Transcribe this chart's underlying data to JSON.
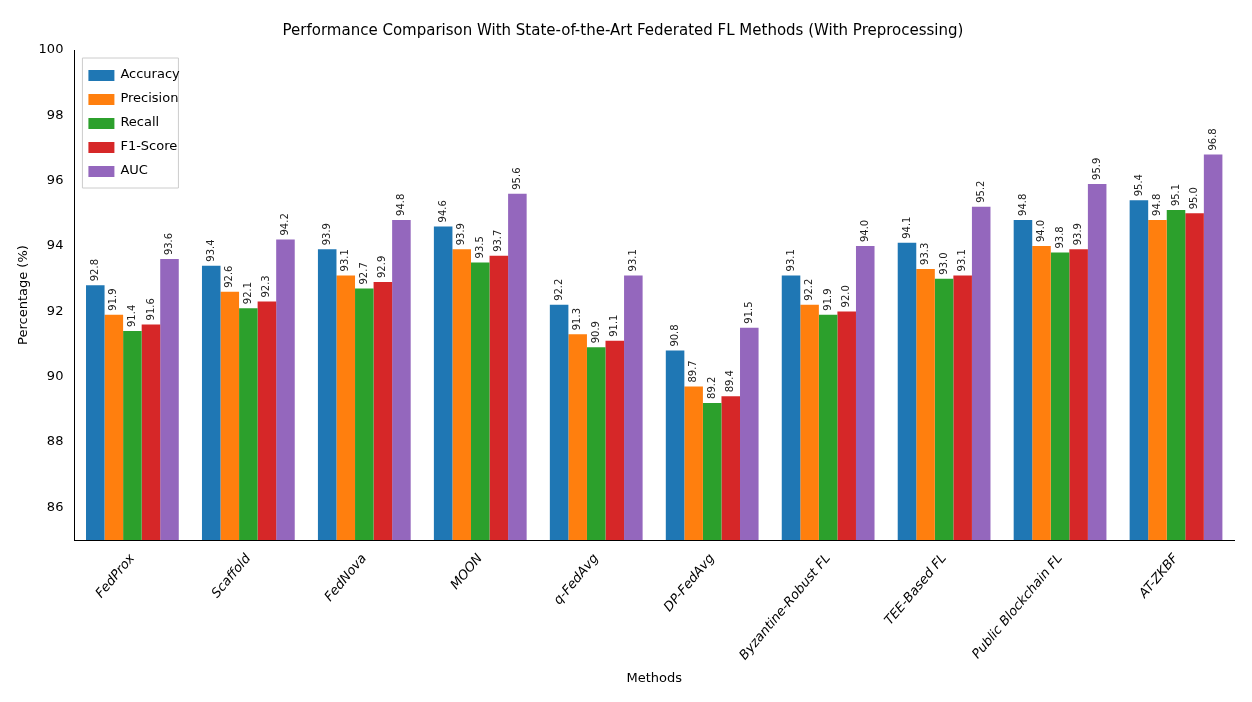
{
  "chart_data": {
    "type": "bar",
    "title": "Performance Comparison With State-of-the-Art Federated FL Methods (With Preprocessing)",
    "xlabel": "Methods",
    "ylabel": "Percentage (%)",
    "categories": [
      "FedProx",
      "Scaffold",
      "FedNova",
      "MOON",
      "q-FedAvg",
      "DP-FedAvg",
      "Byzantine-Robust FL",
      "TEE-Based FL",
      "Public Blockchain FL",
      "AT-ZKBF"
    ],
    "series": [
      {
        "name": "Accuracy",
        "color": "#1f77b4",
        "values": [
          92.8,
          93.4,
          93.9,
          94.6,
          92.2,
          90.8,
          93.1,
          94.1,
          94.8,
          95.4
        ],
        "value_labels": [
          "92.8",
          "93.4",
          "93.9",
          "94.6",
          "92.2",
          "90.8",
          "93.1",
          "94.1",
          "94.8",
          "95.4"
        ]
      },
      {
        "name": "Precision",
        "color": "#ff7f0e",
        "values": [
          91.9,
          92.6,
          93.1,
          93.9,
          91.3,
          89.7,
          92.2,
          93.3,
          94.0,
          94.8
        ],
        "value_labels": [
          "91.9",
          "92.6",
          "93.1",
          "93.9",
          "91.3",
          "89.7",
          "92.2",
          "93.3",
          "94.0",
          "94.8"
        ]
      },
      {
        "name": "Recall",
        "color": "#2ca02c",
        "values": [
          91.4,
          92.1,
          92.7,
          93.5,
          90.9,
          89.2,
          91.9,
          93.0,
          93.8,
          95.1
        ],
        "value_labels": [
          "91.4",
          "92.1",
          "92.7",
          "93.5",
          "90.9",
          "89.2",
          "91.9",
          "93.0",
          "93.8",
          "95.1"
        ]
      },
      {
        "name": "F1-Score",
        "color": "#d62728",
        "values": [
          91.6,
          92.3,
          92.9,
          93.7,
          91.1,
          89.4,
          92.0,
          93.1,
          93.9,
          95.0
        ],
        "value_labels": [
          "91.6",
          "92.3",
          "92.9",
          "93.7",
          "91.1",
          "89.4",
          "92.0",
          "93.1",
          "93.9",
          "95.0"
        ]
      },
      {
        "name": "AUC",
        "color": "#9467bd",
        "values": [
          93.6,
          94.2,
          94.8,
          95.6,
          93.1,
          91.5,
          94.0,
          95.2,
          95.9,
          96.8
        ],
        "value_labels": [
          "93.6",
          "94.2",
          "94.8",
          "95.6",
          "93.1",
          "91.5",
          "94.0",
          "95.2",
          "95.9",
          "96.8"
        ]
      }
    ],
    "ylim": [
      85,
      100
    ],
    "yticks": [
      86,
      88,
      90,
      92,
      94,
      96,
      98,
      100
    ],
    "grid": false,
    "legend": "top left"
  }
}
